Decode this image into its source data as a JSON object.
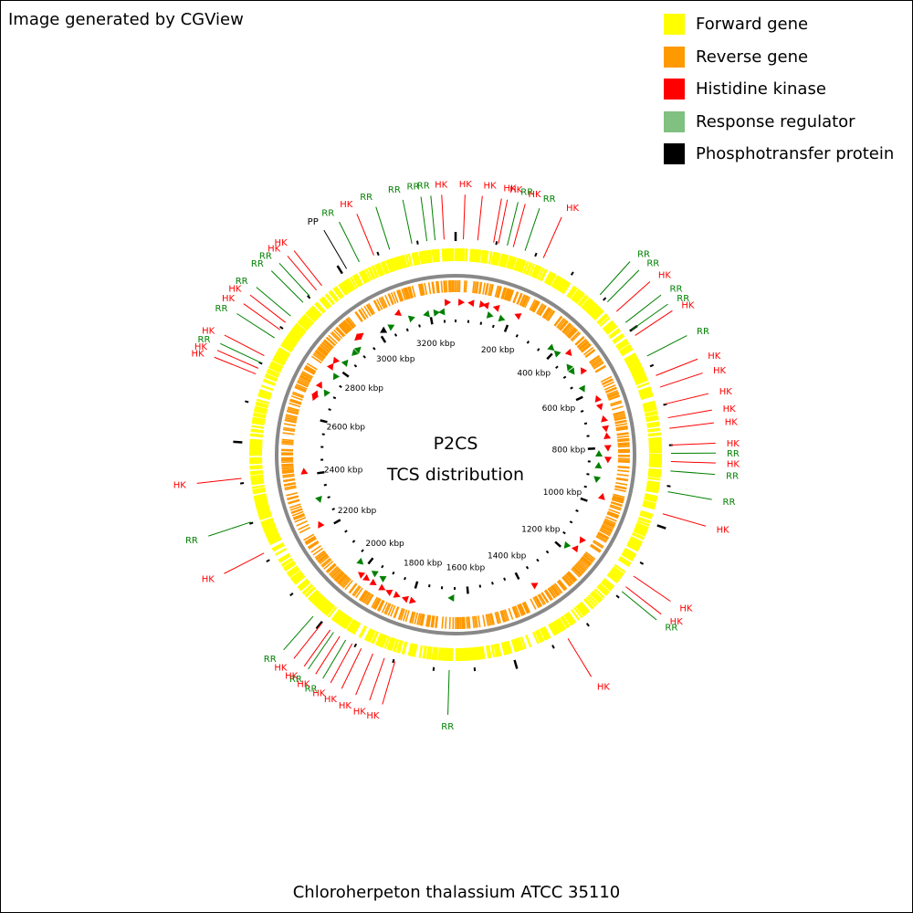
{
  "credit": "Image generated by CGView",
  "organism": "Chloroherpeton thalassium ATCC 35110",
  "center_title": {
    "line1": "P2CS",
    "line2": "TCS distribution"
  },
  "legend": [
    {
      "label": "Forward gene",
      "color": "#ffff00"
    },
    {
      "label": "Reverse gene",
      "color": "#ff9900"
    },
    {
      "label": "Histidine kinase",
      "color": "#ff0000"
    },
    {
      "label": "Response regulator",
      "color": "#80c080"
    },
    {
      "label": "Phosphotransfer protein",
      "color": "#000000"
    }
  ],
  "colors": {
    "forward": "#ffff00",
    "reverse": "#ff9900",
    "hk": "#ff0000",
    "rr": "#008000",
    "pp": "#000000",
    "backbone": "#888888"
  },
  "genome_kbp": 3293,
  "scale_ticks": [
    {
      "kbp": 200,
      "label": "200 kbp"
    },
    {
      "kbp": 400,
      "label": "400 kbp"
    },
    {
      "kbp": 600,
      "label": "600 kbp"
    },
    {
      "kbp": 800,
      "label": "800 kbp"
    },
    {
      "kbp": 1000,
      "label": "1000 kbp"
    },
    {
      "kbp": 1200,
      "label": "1200 kbp"
    },
    {
      "kbp": 1400,
      "label": "1400 kbp"
    },
    {
      "kbp": 1600,
      "label": "1600 kbp"
    },
    {
      "kbp": 1800,
      "label": "1800 kbp"
    },
    {
      "kbp": 2000,
      "label": "2000 kbp"
    },
    {
      "kbp": 2200,
      "label": "2200 kbp"
    },
    {
      "kbp": 2400,
      "label": "2400 kbp"
    },
    {
      "kbp": 2600,
      "label": "2600 kbp"
    },
    {
      "kbp": 2800,
      "label": "2800 kbp"
    },
    {
      "kbp": 3000,
      "label": "3000 kbp"
    },
    {
      "kbp": 3200,
      "label": "3200 kbp"
    }
  ],
  "features": [
    {
      "type": "HK",
      "kbp": 19
    },
    {
      "type": "HK",
      "kbp": 54
    },
    {
      "type": "HK",
      "kbp": 93
    },
    {
      "type": "HK",
      "kbp": 105
    },
    {
      "type": "RR",
      "kbp": 127
    },
    {
      "type": "HK",
      "kbp": 142
    },
    {
      "type": "RR",
      "kbp": 172
    },
    {
      "type": "HK",
      "kbp": 220
    },
    {
      "type": "RR",
      "kbp": 385
    },
    {
      "type": "RR",
      "kbp": 410
    },
    {
      "type": "HK",
      "kbp": 442
    },
    {
      "type": "RR",
      "kbp": 477
    },
    {
      "type": "RR",
      "kbp": 500
    },
    {
      "type": "HK",
      "kbp": 516
    },
    {
      "type": "RR",
      "kbp": 574
    },
    {
      "type": "HK",
      "kbp": 626
    },
    {
      "type": "HK",
      "kbp": 656
    },
    {
      "type": "HK",
      "kbp": 699
    },
    {
      "type": "HK",
      "kbp": 733
    },
    {
      "type": "HK",
      "kbp": 759
    },
    {
      "type": "HK",
      "kbp": 800
    },
    {
      "type": "RR",
      "kbp": 820
    },
    {
      "type": "HK",
      "kbp": 840
    },
    {
      "type": "RR",
      "kbp": 863
    },
    {
      "type": "RR",
      "kbp": 914
    },
    {
      "type": "HK",
      "kbp": 969
    },
    {
      "type": "HK",
      "kbp": 1137
    },
    {
      "type": "HK",
      "kbp": 1169
    },
    {
      "type": "RR",
      "kbp": 1184
    },
    {
      "type": "HK",
      "kbp": 1359
    },
    {
      "type": "RR",
      "kbp": 1662
    },
    {
      "type": "HK",
      "kbp": 1796
    },
    {
      "type": "HK",
      "kbp": 1823
    },
    {
      "type": "HK",
      "kbp": 1853
    },
    {
      "type": "HK",
      "kbp": 1884
    },
    {
      "type": "HK",
      "kbp": 1909
    },
    {
      "type": "RR",
      "kbp": 1927
    },
    {
      "type": "HK",
      "kbp": 1944
    },
    {
      "type": "RR",
      "kbp": 1962
    },
    {
      "type": "HK",
      "kbp": 1972
    },
    {
      "type": "HK",
      "kbp": 1998
    },
    {
      "type": "RR",
      "kbp": 2025
    },
    {
      "type": "HK",
      "kbp": 2221
    },
    {
      "type": "RR",
      "kbp": 2303
    },
    {
      "type": "HK",
      "kbp": 2412
    },
    {
      "type": "HK",
      "kbp": 2671
    },
    {
      "type": "HK",
      "kbp": 2686
    },
    {
      "type": "RR",
      "kbp": 2701
    },
    {
      "type": "HK",
      "kbp": 2720
    },
    {
      "type": "RR",
      "kbp": 2770
    },
    {
      "type": "HK",
      "kbp": 2794
    },
    {
      "type": "HK",
      "kbp": 2816
    },
    {
      "type": "RR",
      "kbp": 2836
    },
    {
      "type": "RR",
      "kbp": 2881
    },
    {
      "type": "RR",
      "kbp": 2903
    },
    {
      "type": "HK",
      "kbp": 2925
    },
    {
      "type": "HK",
      "kbp": 2942
    },
    {
      "type": "PP",
      "kbp": 3015
    },
    {
      "type": "RR",
      "kbp": 3050
    },
    {
      "type": "HK",
      "kbp": 3089
    },
    {
      "type": "RR",
      "kbp": 3130
    },
    {
      "type": "RR",
      "kbp": 3186
    },
    {
      "type": "RR",
      "kbp": 3223
    },
    {
      "type": "RR",
      "kbp": 3243
    },
    {
      "type": "HK",
      "kbp": 3265
    }
  ]
}
